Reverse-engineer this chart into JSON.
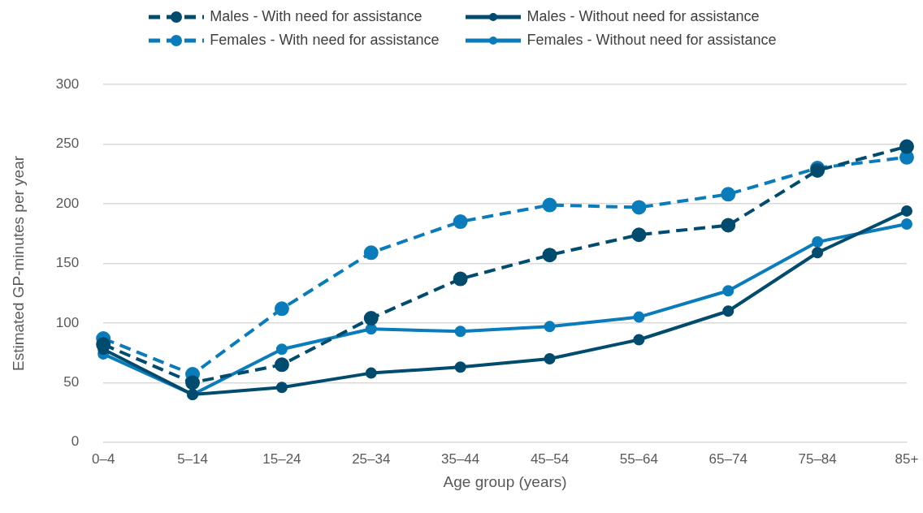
{
  "chart_data": {
    "type": "line",
    "xlabel": "Age group (years)",
    "ylabel": "Estimated GP-minutes per year",
    "categories": [
      "0–4",
      "5–14",
      "15–24",
      "25–34",
      "35–44",
      "45–54",
      "55–64",
      "65–74",
      "75–84",
      "85+"
    ],
    "series": [
      {
        "name": "Males - With need for assistance",
        "color": "#004b6e",
        "line_style": "dashed",
        "values": [
          82,
          50,
          65,
          104,
          137,
          157,
          174,
          182,
          228,
          248
        ]
      },
      {
        "name": "Males - Without need for assistance",
        "color": "#004b6e",
        "line_style": "solid",
        "values": [
          78,
          40,
          46,
          58,
          63,
          70,
          86,
          110,
          159,
          194
        ]
      },
      {
        "name": "Females - With need for assistance",
        "color": "#0a7cbb",
        "line_style": "dashed",
        "values": [
          87,
          57,
          112,
          159,
          185,
          199,
          197,
          208,
          230,
          239
        ]
      },
      {
        "name": "Females - Without need for assistance",
        "color": "#0a7cbb",
        "line_style": "solid",
        "values": [
          74,
          40,
          78,
          95,
          93,
          97,
          105,
          127,
          168,
          183
        ]
      }
    ],
    "ylim": [
      0,
      300
    ],
    "yticks": [
      0,
      50,
      100,
      150,
      200,
      250,
      300
    ],
    "grid": "y",
    "legend": "top",
    "marker": "circle"
  }
}
